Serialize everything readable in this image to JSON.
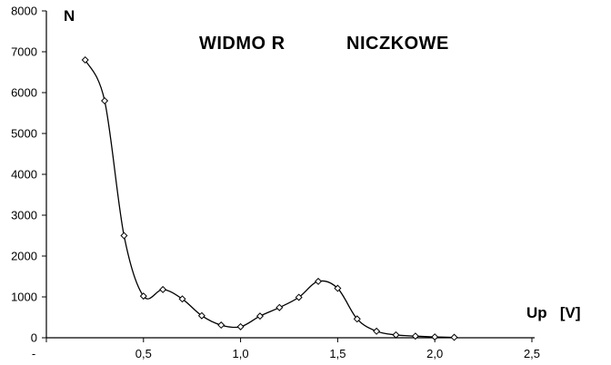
{
  "chart_data": {
    "type": "line",
    "title_left": "WIDMO R",
    "title_right": "NICZKOWE",
    "ylabel": "N",
    "xlabel": "Up   [V]",
    "xlim": [
      0,
      2.5
    ],
    "ylim": [
      0,
      8000
    ],
    "x_ticks": [
      0,
      0.5,
      1.0,
      1.5,
      2.0,
      2.5
    ],
    "x_tick_labels": [
      "-",
      "0,5",
      "1,0",
      "1,5",
      "2,0",
      "2,5"
    ],
    "y_ticks": [
      0,
      1000,
      2000,
      3000,
      4000,
      5000,
      6000,
      7000,
      8000
    ],
    "y_tick_labels": [
      "0",
      "1000",
      "2000",
      "3000",
      "4000",
      "5000",
      "6000",
      "7000",
      "8000"
    ],
    "grid": false,
    "legend": "none",
    "marker": "diamond",
    "series": [
      {
        "x": [
          0.2,
          0.3,
          0.4,
          0.5,
          0.6,
          0.7,
          0.8,
          0.9,
          1.0,
          1.1,
          1.2,
          1.3,
          1.4,
          1.5,
          1.6,
          1.7,
          1.8,
          1.9,
          2.0,
          2.1
        ],
        "y": [
          6800,
          5800,
          2500,
          1020,
          1180,
          950,
          540,
          310,
          270,
          530,
          740,
          990,
          1380,
          1210,
          460,
          160,
          70,
          40,
          20,
          10
        ]
      }
    ]
  }
}
